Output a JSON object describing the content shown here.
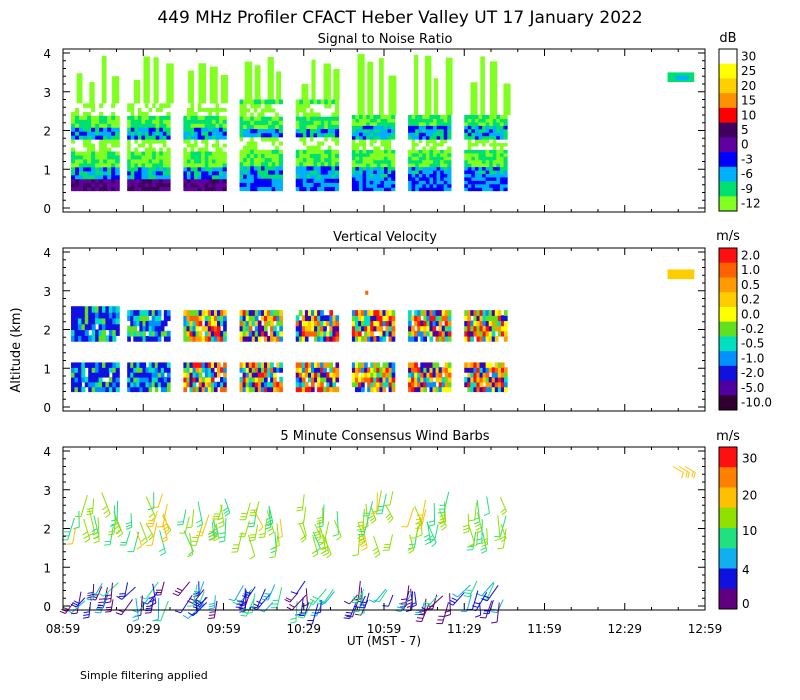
{
  "figure": {
    "title": "449 MHz Profiler CFACT Heber Valley UT 17 January 2022",
    "x_axis_label": "UT  (MST - 7)",
    "y_axis_label": "Altitude (km)",
    "footnote": "Simple filtering applied",
    "x_tick_labels": [
      "08:59",
      "09:29",
      "09:59",
      "10:29",
      "10:59",
      "11:29",
      "11:59",
      "12:29",
      "12:59"
    ]
  },
  "chart_data": [
    {
      "type": "heatmap",
      "title": "Signal to Noise Ratio",
      "colorbar_unit": "dB",
      "colorbar_labels": [
        "30",
        "25",
        "20",
        "15",
        "10",
        "5",
        "0",
        "-3",
        "-6",
        "-9",
        "-12"
      ],
      "colorbar_colors": [
        "#ffffff",
        "#ffff00",
        "#ffd000",
        "#ff9000",
        "#ff0000",
        "#400060",
        "#6000a0",
        "#0000ff",
        "#00b0ff",
        "#00e070",
        "#80ff20"
      ],
      "ylabel": "Altitude (km)",
      "ylim": [
        0,
        4
      ],
      "y_ticks": [
        "0",
        "1",
        "2",
        "3",
        "4"
      ],
      "x_range": [
        "08:59",
        "12:59"
      ],
      "profile_blocks": [
        {
          "start_min": 3,
          "end_min": 21,
          "top_km": 2.7
        },
        {
          "start_min": 24,
          "end_min": 40,
          "top_km": 2.7
        },
        {
          "start_min": 45,
          "end_min": 61,
          "top_km": 2.7
        },
        {
          "start_min": 66,
          "end_min": 82,
          "top_km": 2.8
        },
        {
          "start_min": 87,
          "end_min": 103,
          "top_km": 2.8
        },
        {
          "start_min": 108,
          "end_min": 124,
          "top_km": 2.4
        },
        {
          "start_min": 129,
          "end_min": 145,
          "top_km": 2.4
        },
        {
          "start_min": 150,
          "end_min": 166,
          "top_km": 2.4
        }
      ]
    },
    {
      "type": "heatmap",
      "title": "Vertical Velocity",
      "colorbar_unit": "m/s",
      "colorbar_labels": [
        "2.0",
        "1.0",
        "0.5",
        "0.2",
        "0.0",
        "-0.2",
        "-0.5",
        "-1.0",
        "-2.0",
        "-5.0",
        "-10.0"
      ],
      "colorbar_colors": [
        "#ff1010",
        "#ff6000",
        "#ff9a00",
        "#ffcc00",
        "#ffff00",
        "#60e020",
        "#00e0c0",
        "#0090ff",
        "#1010e0",
        "#5000a0",
        "#300030"
      ],
      "ylim": [
        0,
        4
      ],
      "y_ticks": [
        "0",
        "1",
        "2",
        "3",
        "4"
      ],
      "x_range": [
        "08:59",
        "12:59"
      ]
    },
    {
      "type": "scatter",
      "title": "5 Minute Consensus Wind Barbs",
      "colorbar_unit": "m/s",
      "colorbar_labels": [
        "30",
        "20",
        "10",
        "4",
        "0"
      ],
      "colorbar_colors": [
        "#ff1010",
        "#ff8000",
        "#ffc000",
        "#90e000",
        "#20e080",
        "#10b0f0",
        "#1010e0",
        "#600080"
      ],
      "ylim": [
        0,
        4
      ],
      "y_ticks": [
        "0",
        "1",
        "2",
        "3",
        "4"
      ],
      "x_range": [
        "08:59",
        "12:59"
      ]
    }
  ]
}
